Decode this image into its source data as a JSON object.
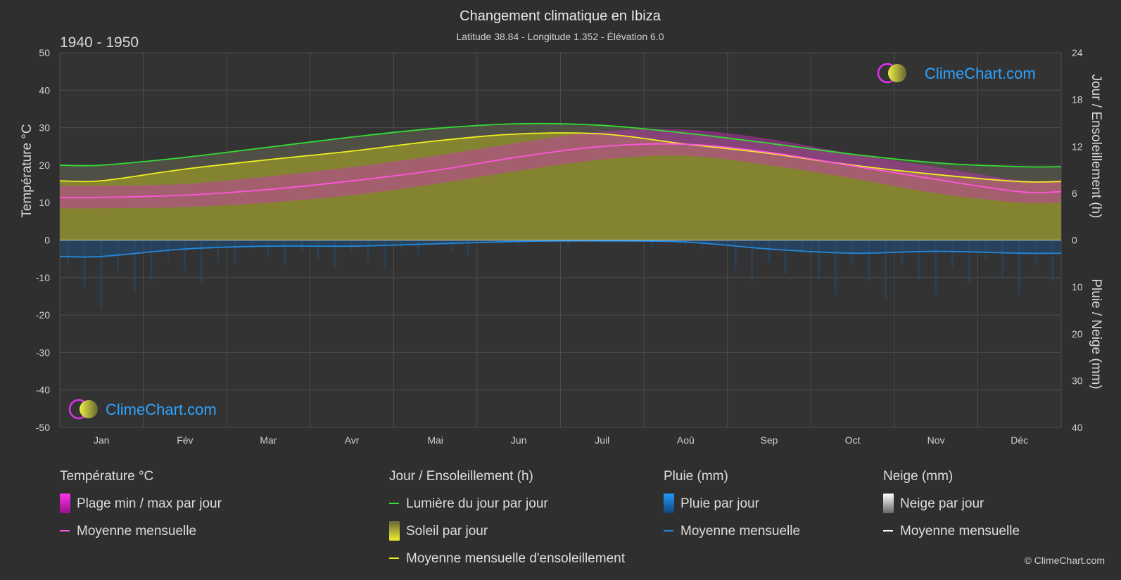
{
  "header": {
    "title": "Changement climatique en Ibiza",
    "subtitle": "Latitude 38.84 - Longitude 1.352 - Élévation 6.0",
    "period": "1940 - 1950"
  },
  "brand": {
    "name": "ClimeChart.com",
    "copyright": "© ClimeChart.com"
  },
  "chart_data": {
    "type": "area",
    "categories": [
      "Jan",
      "Fév",
      "Mar",
      "Avr",
      "Mai",
      "Jun",
      "Juil",
      "Aoû",
      "Sep",
      "Oct",
      "Nov",
      "Déc"
    ],
    "axes": {
      "left": {
        "label": "Température °C",
        "range": [
          -50,
          50
        ],
        "ticks": [
          50,
          40,
          30,
          20,
          10,
          0,
          -10,
          -20,
          -30,
          -40,
          -50
        ]
      },
      "right_top": {
        "label": "Jour / Ensoleillement (h)",
        "range": [
          0,
          24
        ],
        "ticks": [
          24,
          18,
          12,
          6,
          0
        ]
      },
      "right_bottom": {
        "label": "Pluie / Neige (mm)",
        "range": [
          0,
          40
        ],
        "ticks": [
          10,
          20,
          30,
          40
        ]
      }
    },
    "grid": true,
    "legend_placement": "bottom",
    "series": [
      {
        "name": "Lumière du jour par jour",
        "axis": "hours",
        "color": "#33dd33",
        "values": [
          9.6,
          10.6,
          11.9,
          13.2,
          14.3,
          14.9,
          14.7,
          13.7,
          12.4,
          11.0,
          9.9,
          9.4
        ]
      },
      {
        "name": "Moyenne mensuelle d'ensoleillement",
        "axis": "hours",
        "color": "#eeee22",
        "values": [
          7.6,
          9.1,
          10.3,
          11.4,
          12.7,
          13.6,
          13.6,
          12.3,
          11.1,
          9.6,
          8.4,
          7.5
        ]
      },
      {
        "name": "Moyenne mensuelle",
        "group": "Température °C",
        "axis": "temperature",
        "color": "#ff55dd",
        "values": [
          11.4,
          12.0,
          13.5,
          15.8,
          18.6,
          22.2,
          25.0,
          25.6,
          23.4,
          19.8,
          16.2,
          12.9
        ]
      },
      {
        "name": "Plage min / max par jour",
        "group": "Température °C",
        "axis": "temperature",
        "color": "#dd22cc",
        "min": [
          8.5,
          8.8,
          10.0,
          12.0,
          15.0,
          18.5,
          21.5,
          22.5,
          20.0,
          16.5,
          12.5,
          10.0
        ],
        "max": [
          14.5,
          15.0,
          17.0,
          19.5,
          22.5,
          26.0,
          29.0,
          29.5,
          27.0,
          23.0,
          19.5,
          16.0
        ]
      },
      {
        "name": "Moyenne mensuelle",
        "group": "Pluie (mm)",
        "axis": "precip",
        "color": "#2288dd",
        "values": [
          3.5,
          1.9,
          1.3,
          1.3,
          0.8,
          0.3,
          0.2,
          0.4,
          1.9,
          2.8,
          2.4,
          2.8
        ]
      }
    ]
  },
  "legend": {
    "groups": [
      {
        "heading": "Température °C",
        "items": [
          {
            "label": "Plage min / max par jour",
            "kind": "swatch-temp"
          },
          {
            "label": "Moyenne mensuelle",
            "kind": "line",
            "color": "#ff55dd"
          }
        ]
      },
      {
        "heading": "Jour / Ensoleillement (h)",
        "items": [
          {
            "label": "Lumière du jour par jour",
            "kind": "line",
            "color": "#33dd33"
          },
          {
            "label": "Soleil par jour",
            "kind": "swatch-sun"
          },
          {
            "label": "Moyenne mensuelle d'ensoleillement",
            "kind": "line",
            "color": "#eeee22"
          }
        ]
      },
      {
        "heading": "Pluie (mm)",
        "items": [
          {
            "label": "Pluie par jour",
            "kind": "swatch-rain"
          },
          {
            "label": "Moyenne mensuelle",
            "kind": "line",
            "color": "#2288dd"
          }
        ]
      },
      {
        "heading": "Neige (mm)",
        "items": [
          {
            "label": "Neige par jour",
            "kind": "swatch-snow"
          },
          {
            "label": "Moyenne mensuelle",
            "kind": "line",
            "color": "#ffffff"
          }
        ]
      }
    ]
  }
}
